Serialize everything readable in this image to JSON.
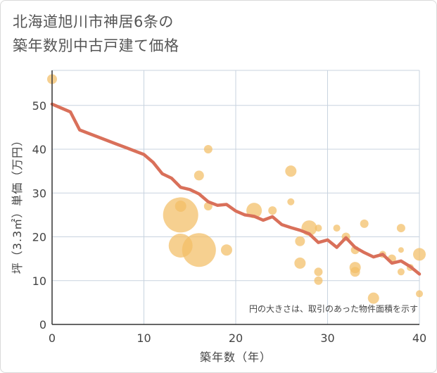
{
  "chart_data": {
    "type": "scatter",
    "title_lines": [
      "北海道旭川市神居6条の",
      "築年数別中古戸建て価格"
    ],
    "xlabel": "築年数（年）",
    "ylabel": "坪（3.3㎡）単価（万円）",
    "xlim": [
      0,
      40
    ],
    "ylim": [
      0,
      58
    ],
    "x_ticks": [
      0,
      10,
      20,
      30,
      40
    ],
    "y_ticks": [
      0,
      10,
      20,
      30,
      40,
      50
    ],
    "grid": true,
    "note": "円の大きさは、取引のあった物件面積を示す",
    "colors": {
      "bubble": "#f3be65",
      "line": "#d9705a",
      "grid": "#c8d3df",
      "axis": "#333333"
    },
    "points": [
      {
        "x": 0,
        "y": 56,
        "r": 7
      },
      {
        "x": 14,
        "y": 25,
        "r": 25
      },
      {
        "x": 14,
        "y": 27,
        "r": 8
      },
      {
        "x": 14,
        "y": 18,
        "r": 17
      },
      {
        "x": 16,
        "y": 17,
        "r": 24
      },
      {
        "x": 16,
        "y": 34,
        "r": 7
      },
      {
        "x": 17,
        "y": 40,
        "r": 6
      },
      {
        "x": 17,
        "y": 27,
        "r": 6
      },
      {
        "x": 19,
        "y": 17,
        "r": 8
      },
      {
        "x": 22,
        "y": 26,
        "r": 11
      },
      {
        "x": 24,
        "y": 26,
        "r": 6
      },
      {
        "x": 26,
        "y": 35,
        "r": 8
      },
      {
        "x": 26,
        "y": 28,
        "r": 5
      },
      {
        "x": 27,
        "y": 19,
        "r": 7
      },
      {
        "x": 27,
        "y": 14,
        "r": 8
      },
      {
        "x": 28,
        "y": 22,
        "r": 11
      },
      {
        "x": 29,
        "y": 22,
        "r": 5
      },
      {
        "x": 29,
        "y": 12,
        "r": 6
      },
      {
        "x": 29,
        "y": 10,
        "r": 6
      },
      {
        "x": 31,
        "y": 22,
        "r": 5
      },
      {
        "x": 32,
        "y": 20,
        "r": 6
      },
      {
        "x": 33,
        "y": 17,
        "r": 6
      },
      {
        "x": 33,
        "y": 13,
        "r": 8
      },
      {
        "x": 33,
        "y": 12,
        "r": 7
      },
      {
        "x": 34,
        "y": 23,
        "r": 6
      },
      {
        "x": 35,
        "y": 6,
        "r": 8
      },
      {
        "x": 36,
        "y": 16,
        "r": 5
      },
      {
        "x": 37,
        "y": 15,
        "r": 6
      },
      {
        "x": 38,
        "y": 22,
        "r": 6
      },
      {
        "x": 38,
        "y": 17,
        "r": 4
      },
      {
        "x": 38,
        "y": 12,
        "r": 5
      },
      {
        "x": 39,
        "y": 13,
        "r": 5
      },
      {
        "x": 40,
        "y": 16,
        "r": 9
      },
      {
        "x": 40,
        "y": 7,
        "r": 5
      }
    ],
    "trend_line": {
      "x": [
        0,
        1,
        2,
        3,
        4,
        5,
        6,
        7,
        8,
        9,
        10,
        11,
        12,
        13,
        14,
        15,
        16,
        17,
        18,
        19,
        20,
        21,
        22,
        23,
        24,
        25,
        26,
        27,
        28,
        29,
        30,
        31,
        32,
        33,
        34,
        35,
        36,
        37,
        38,
        39,
        40
      ],
      "y": [
        50.3,
        49.4,
        48.5,
        44.4,
        43.6,
        42.8,
        42.0,
        41.2,
        40.4,
        39.6,
        38.8,
        37.0,
        34.4,
        33.4,
        31.3,
        30.8,
        29.8,
        28.0,
        27.2,
        27.4,
        25.9,
        25.0,
        24.7,
        23.8,
        24.6,
        22.8,
        22.1,
        21.5,
        20.7,
        18.7,
        19.3,
        17.6,
        19.8,
        17.6,
        16.4,
        15.4,
        16.0,
        14.0,
        14.5,
        13.2,
        11.5
      ]
    }
  }
}
